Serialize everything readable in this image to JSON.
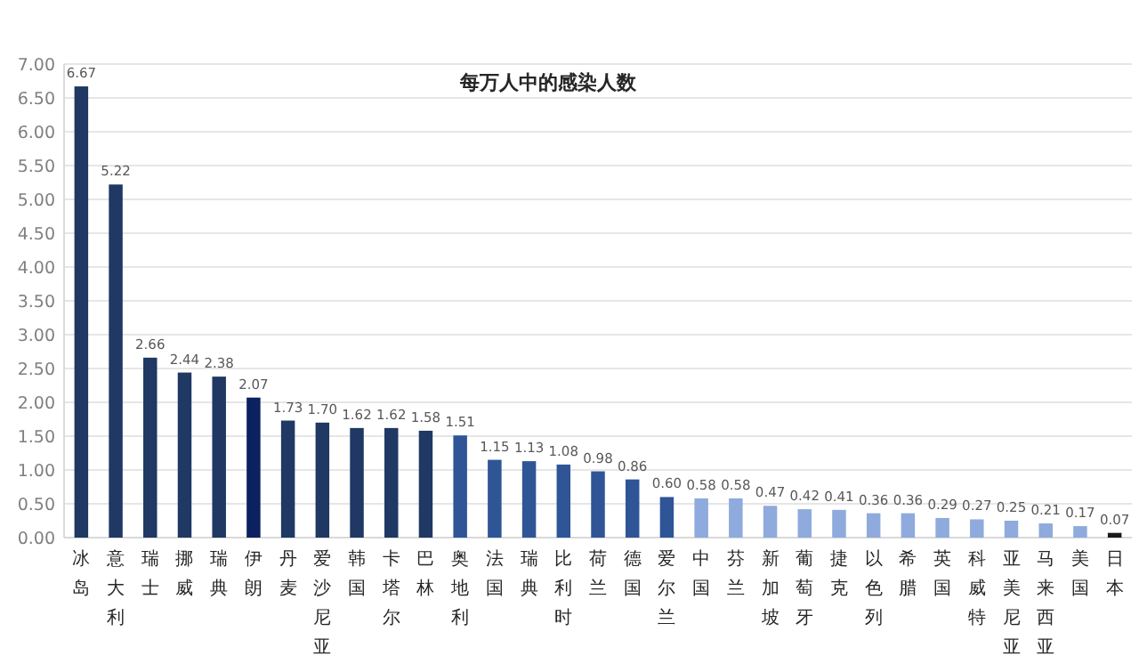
{
  "chart_data": {
    "type": "bar",
    "title": "每万人中的感染人数",
    "categories": [
      "冰岛",
      "意大利",
      "瑞士",
      "挪威",
      "瑞典",
      "伊朗",
      "丹麦",
      "爱沙尼亚",
      "韩国",
      "卡塔尔",
      "巴林",
      "奥地利",
      "法国",
      "瑞典",
      "比利时",
      "荷兰",
      "德国",
      "爱尔兰",
      "中国",
      "芬兰",
      "新加坡",
      "葡萄牙",
      "捷克",
      "以色列",
      "希腊",
      "英国",
      "科威特",
      "亚美尼亚",
      "马来西亚",
      "美国",
      "日本"
    ],
    "values": [
      6.67,
      5.22,
      2.66,
      2.44,
      2.38,
      2.07,
      1.73,
      1.7,
      1.62,
      1.62,
      1.58,
      1.51,
      1.15,
      1.13,
      1.08,
      0.98,
      0.86,
      0.6,
      0.58,
      0.58,
      0.47,
      0.42,
      0.41,
      0.36,
      0.36,
      0.29,
      0.27,
      0.25,
      0.21,
      0.17,
      0.07
    ],
    "value_labels": [
      "6.67",
      "5.22",
      "2.66",
      "2.44",
      "2.38",
      "2.07",
      "1.73",
      "1.70",
      "1.62",
      "1.62",
      "1.58",
      "1.51",
      "1.15",
      "1.13",
      "1.08",
      "0.98",
      "0.86",
      "0.60",
      "0.58",
      "0.58",
      "0.47",
      "0.42",
      "0.41",
      "0.36",
      "0.36",
      "0.29",
      "0.27",
      "0.25",
      "0.21",
      "0.17",
      "0.07"
    ],
    "colors": [
      "#1f3864",
      "#1f3864",
      "#1f3864",
      "#1f3864",
      "#1f3864",
      "#0b2160",
      "#1f3864",
      "#1f3864",
      "#1f3864",
      "#1f3864",
      "#1f3864",
      "#2f5597",
      "#2f5597",
      "#2f5597",
      "#2f5597",
      "#2f5597",
      "#2f5597",
      "#2f5597",
      "#8faadc",
      "#8faadc",
      "#8faadc",
      "#8faadc",
      "#8faadc",
      "#8faadc",
      "#8faadc",
      "#8faadc",
      "#8faadc",
      "#8faadc",
      "#8faadc",
      "#8faadc",
      "#1a1a1a"
    ],
    "ylim": [
      0,
      7
    ],
    "yticks": [
      {
        "value": 0,
        "label": "0.00"
      },
      {
        "value": 0.5,
        "label": "0.50"
      },
      {
        "value": 1,
        "label": "1.00"
      },
      {
        "value": 1.5,
        "label": "1.50"
      },
      {
        "value": 2,
        "label": "2.00"
      },
      {
        "value": 2.5,
        "label": "2.50"
      },
      {
        "value": 3,
        "label": "3.00"
      },
      {
        "value": 3.5,
        "label": "3.50"
      },
      {
        "value": 4,
        "label": "4.00"
      },
      {
        "value": 4.5,
        "label": "4.50"
      },
      {
        "value": 5,
        "label": "5.00"
      },
      {
        "value": 5.5,
        "label": "5.50"
      },
      {
        "value": 6,
        "label": "6.00"
      },
      {
        "value": 6.5,
        "label": "6.50"
      },
      {
        "value": 7,
        "label": "7.00"
      }
    ],
    "grid": "y"
  }
}
